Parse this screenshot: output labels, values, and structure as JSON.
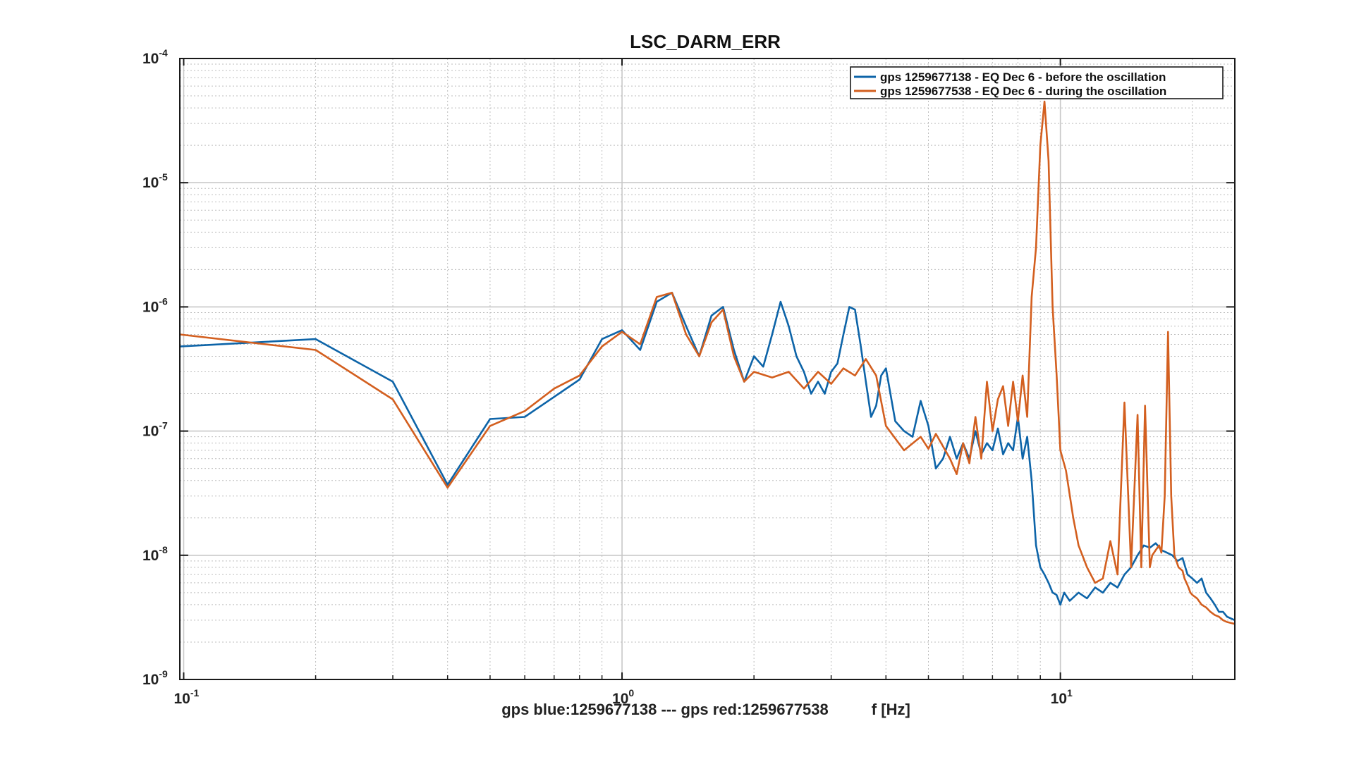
{
  "chart_data": {
    "type": "line",
    "title": "LSC_DARM_ERR",
    "xlabel": "gps blue:1259677138 --- gps red:1259677538          f [Hz]",
    "ylabel": "",
    "xscale": "log",
    "yscale": "log",
    "xlim": [
      0.098,
      25
    ],
    "ylim": [
      1e-09,
      0.0001
    ],
    "grid": true,
    "legend_position": "top-right",
    "x_ticks": [
      {
        "value": 0.1,
        "base": "10",
        "exp": "-1"
      },
      {
        "value": 1,
        "base": "10",
        "exp": "0"
      },
      {
        "value": 10,
        "base": "10",
        "exp": "1"
      }
    ],
    "y_ticks": [
      {
        "value": 1e-09,
        "base": "10",
        "exp": "-9"
      },
      {
        "value": 1e-08,
        "base": "10",
        "exp": "-8"
      },
      {
        "value": 1e-07,
        "base": "10",
        "exp": "-7"
      },
      {
        "value": 1e-06,
        "base": "10",
        "exp": "-6"
      },
      {
        "value": 1e-05,
        "base": "10",
        "exp": "-5"
      },
      {
        "value": 0.0001,
        "base": "10",
        "exp": "-4"
      }
    ],
    "series": [
      {
        "name": "gps 1259677138 - EQ Dec 6 - before the oscillation",
        "color": "#0d64a8",
        "x": [
          0.098,
          0.2,
          0.3,
          0.4,
          0.5,
          0.6,
          0.8,
          0.9,
          1.0,
          1.1,
          1.2,
          1.3,
          1.4,
          1.5,
          1.6,
          1.7,
          1.8,
          1.9,
          2.0,
          2.1,
          2.2,
          2.3,
          2.4,
          2.5,
          2.6,
          2.7,
          2.8,
          2.9,
          3.0,
          3.1,
          3.2,
          3.3,
          3.4,
          3.5,
          3.6,
          3.7,
          3.8,
          3.9,
          4.0,
          4.2,
          4.4,
          4.6,
          4.8,
          5.0,
          5.2,
          5.4,
          5.6,
          5.8,
          6.0,
          6.2,
          6.4,
          6.6,
          6.8,
          7.0,
          7.2,
          7.4,
          7.6,
          7.8,
          8.0,
          8.2,
          8.4,
          8.6,
          8.8,
          9.0,
          9.2,
          9.4,
          9.6,
          9.8,
          10.0,
          10.2,
          10.5,
          11.0,
          11.5,
          12.0,
          12.5,
          13.0,
          13.5,
          14.0,
          14.5,
          15.0,
          15.5,
          16.0,
          16.5,
          17.0,
          17.5,
          18.0,
          18.5,
          19.0,
          19.5,
          20.0,
          20.5,
          21.0,
          21.5,
          22.0,
          22.5,
          23.0,
          23.5,
          24.0,
          24.5,
          25.0
        ],
        "values": [
          4.8e-07,
          5.5e-07,
          2.5e-07,
          3.7e-08,
          1.25e-07,
          1.3e-07,
          2.6e-07,
          5.5e-07,
          6.5e-07,
          4.5e-07,
          1.1e-06,
          1.3e-06,
          7e-07,
          4e-07,
          8.5e-07,
          1e-06,
          4.5e-07,
          2.5e-07,
          4e-07,
          3.3e-07,
          6e-07,
          1.1e-06,
          7e-07,
          4e-07,
          3e-07,
          2e-07,
          2.5e-07,
          2e-07,
          3e-07,
          3.5e-07,
          6e-07,
          1e-06,
          9.5e-07,
          5e-07,
          2.5e-07,
          1.3e-07,
          1.6e-07,
          2.8e-07,
          3.2e-07,
          1.2e-07,
          1e-07,
          9e-08,
          1.75e-07,
          1.1e-07,
          5e-08,
          6e-08,
          9e-08,
          6e-08,
          8e-08,
          6e-08,
          1e-07,
          6.5e-08,
          8e-08,
          7e-08,
          1.05e-07,
          6.5e-08,
          8e-08,
          7e-08,
          1.3e-07,
          6e-08,
          9e-08,
          4e-08,
          1.2e-08,
          8e-09,
          7e-09,
          6e-09,
          5e-09,
          4.8e-09,
          4e-09,
          5e-09,
          4.3e-09,
          5e-09,
          4.5e-09,
          5.5e-09,
          5e-09,
          6e-09,
          5.5e-09,
          7e-09,
          8e-09,
          1e-08,
          1.2e-08,
          1.15e-08,
          1.25e-08,
          1.1e-08,
          1.05e-08,
          1e-08,
          9e-09,
          9.5e-09,
          7e-09,
          6.5e-09,
          6e-09,
          6.5e-09,
          5e-09,
          4.5e-09,
          4e-09,
          3.5e-09,
          3.5e-09,
          3.2e-09,
          3.1e-09,
          3e-09
        ]
      },
      {
        "name": "gps 1259677538 - EQ Dec 6 - during the oscillation",
        "color": "#d35f1f",
        "x": [
          0.098,
          0.2,
          0.3,
          0.4,
          0.5,
          0.6,
          0.7,
          0.8,
          0.9,
          1.0,
          1.1,
          1.2,
          1.3,
          1.4,
          1.5,
          1.6,
          1.7,
          1.8,
          1.9,
          2.0,
          2.2,
          2.4,
          2.6,
          2.8,
          3.0,
          3.2,
          3.4,
          3.6,
          3.8,
          4.0,
          4.4,
          4.8,
          5.0,
          5.2,
          5.6,
          5.8,
          6.0,
          6.2,
          6.4,
          6.6,
          6.8,
          7.0,
          7.2,
          7.4,
          7.6,
          7.8,
          8.0,
          8.2,
          8.4,
          8.6,
          8.8,
          9.0,
          9.2,
          9.4,
          9.6,
          9.8,
          10.0,
          10.3,
          10.7,
          11.0,
          11.5,
          12.0,
          12.5,
          13.0,
          13.5,
          14.0,
          14.5,
          15.0,
          15.3,
          15.6,
          16.0,
          16.2,
          16.5,
          16.8,
          17.0,
          17.3,
          17.6,
          17.9,
          18.2,
          18.6,
          19.0,
          19.2,
          19.4,
          19.6,
          19.8,
          20.0,
          20.5,
          21.0,
          21.5,
          22.0,
          22.5,
          23.0,
          23.5,
          24.0,
          24.5,
          25.0
        ],
        "values": [
          6e-07,
          4.5e-07,
          1.8e-07,
          3.5e-08,
          1.1e-07,
          1.45e-07,
          2.2e-07,
          2.8e-07,
          4.8e-07,
          6.3e-07,
          5e-07,
          1.2e-06,
          1.3e-06,
          6e-07,
          4e-07,
          7.5e-07,
          9.5e-07,
          4e-07,
          2.5e-07,
          3e-07,
          2.7e-07,
          3e-07,
          2.2e-07,
          3e-07,
          2.4e-07,
          3.2e-07,
          2.8e-07,
          3.8e-07,
          2.8e-07,
          1.1e-07,
          7e-08,
          9e-08,
          7.2e-08,
          9.5e-08,
          6e-08,
          4.5e-08,
          8e-08,
          5.5e-08,
          1.3e-07,
          6e-08,
          2.5e-07,
          1e-07,
          1.8e-07,
          2.3e-07,
          1.1e-07,
          2.5e-07,
          1.2e-07,
          2.8e-07,
          1.3e-07,
          1.2e-06,
          3e-06,
          2e-05,
          4.5e-05,
          1.5e-05,
          1e-06,
          2.9e-07,
          7e-08,
          4.8e-08,
          2e-08,
          1.2e-08,
          8e-09,
          6e-09,
          6.5e-09,
          1.3e-08,
          7e-09,
          1.7e-07,
          8e-09,
          1.35e-07,
          8e-09,
          1.6e-07,
          8e-09,
          1e-08,
          1.1e-08,
          1.2e-08,
          1.05e-08,
          3e-08,
          6.3e-07,
          3e-08,
          1e-08,
          8e-09,
          7.5e-09,
          6.5e-09,
          6e-09,
          5.5e-09,
          5e-09,
          4.8e-09,
          4.5e-09,
          4e-09,
          3.8e-09,
          3.5e-09,
          3.3e-09,
          3.2e-09,
          3e-09,
          2.9e-09,
          2.85e-09,
          2.8e-09
        ]
      }
    ]
  }
}
